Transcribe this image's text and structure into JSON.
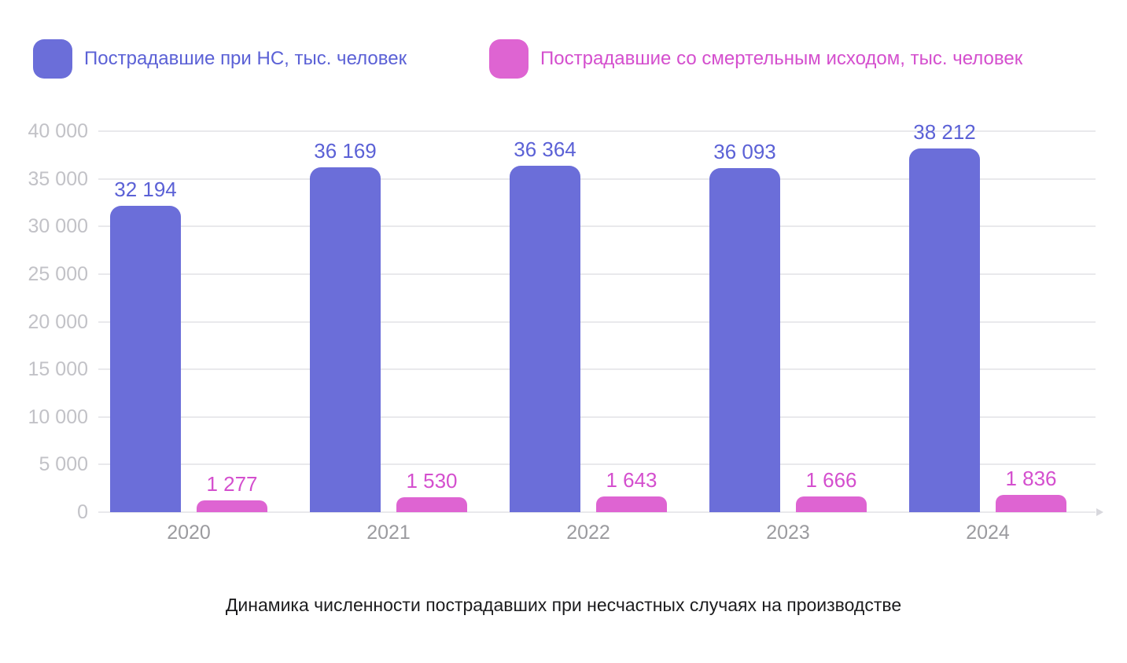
{
  "legend": {
    "items": [
      {
        "label": "Пострадавшие при НС, тыс. человек",
        "color": "#6b6ed9",
        "text_color": "#5b61d6"
      },
      {
        "label": "Пострадавшие со смертельным исходом, тыс. человек",
        "color": "#de64d2",
        "text_color": "#d44fce"
      }
    ]
  },
  "caption": "Динамика численности пострадавших при несчастных случаях на производстве",
  "chart_data": {
    "type": "bar",
    "title": "Динамика численности пострадавших при несчастных случаях на производстве",
    "categories": [
      "2020",
      "2021",
      "2022",
      "2023",
      "2024"
    ],
    "series": [
      {
        "name": "Пострадавшие при НС, тыс. человек",
        "color": "#6b6ed9",
        "label_color": "#5b61d6",
        "values": [
          32194,
          36169,
          36364,
          36093,
          38212
        ],
        "labels": [
          "32 194",
          "36 169",
          "36 364",
          "36 093",
          "38 212"
        ]
      },
      {
        "name": "Пострадавшие со смертельным исходом, тыс. человек",
        "color": "#de64d2",
        "label_color": "#d44fce",
        "values": [
          1277,
          1530,
          1643,
          1666,
          1836
        ],
        "labels": [
          "1 277",
          "1 530",
          "1 643",
          "1 666",
          "1 836"
        ]
      }
    ],
    "xlabel": "",
    "ylabel": "",
    "ylim": [
      0,
      40000
    ],
    "ytick_step": 5000,
    "ytick_labels": [
      "0",
      "5 000",
      "10 000",
      "15 000",
      "20 000",
      "25 000",
      "30 000",
      "35 000",
      "40 000"
    ],
    "grid": true,
    "grid_color": "#e9e9ec",
    "legend_position": "top"
  }
}
